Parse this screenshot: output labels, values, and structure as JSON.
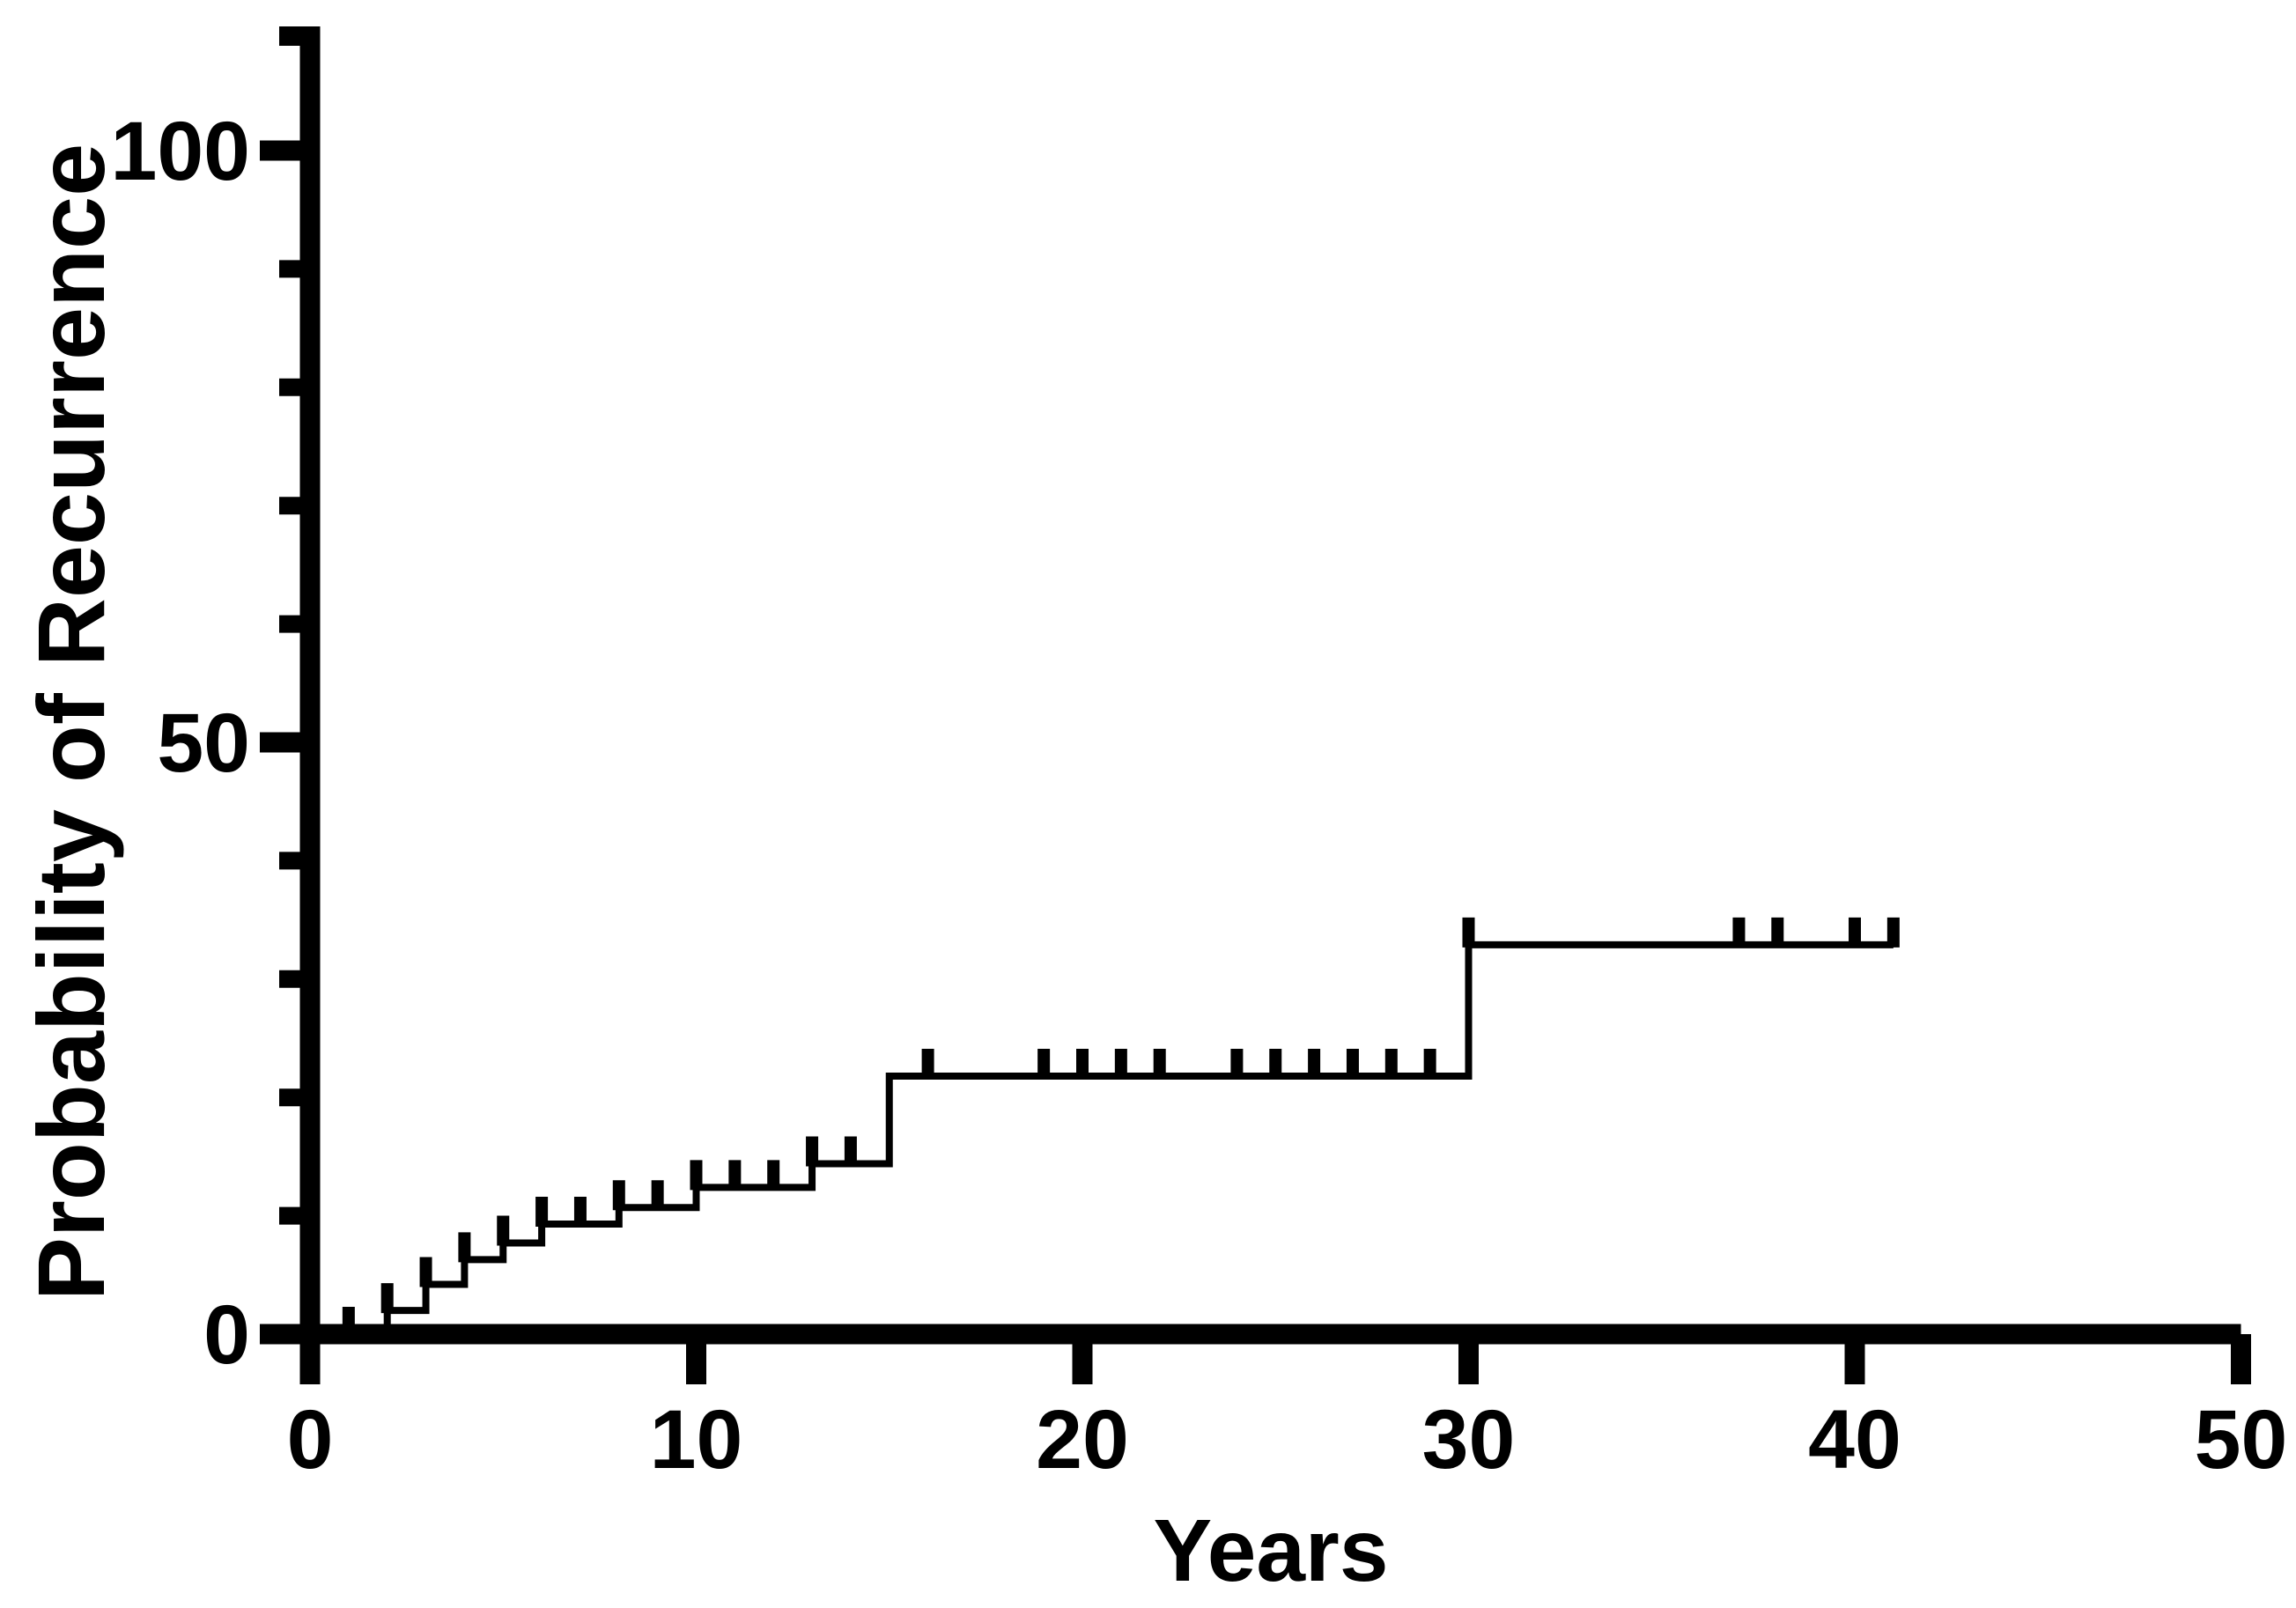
{
  "figure": {
    "background_color": "#ffffff",
    "ink_color": "#000000",
    "description": "Kaplan-Meier style step plot of probability of recurrence over years, black on white, no title, no legend"
  },
  "chart_data": {
    "type": "line",
    "subtype": "kaplan-meier-step",
    "title": "",
    "xlabel": "Years",
    "ylabel": "Probability of Recurrence",
    "grid": false,
    "legend": false,
    "line_color": "#000000",
    "x_axis": {
      "min": 0,
      "max": 50,
      "tick_interval": 10,
      "ticks": [
        {
          "value": 0,
          "label": "0"
        },
        {
          "value": 10,
          "label": "10"
        },
        {
          "value": 20,
          "label": "20"
        },
        {
          "value": 30,
          "label": "30"
        },
        {
          "value": 40,
          "label": "40"
        },
        {
          "value": 50,
          "label": "50"
        }
      ]
    },
    "y_axis": {
      "min": 0,
      "max": 110,
      "major_tick_interval": 50,
      "minor_tick_interval": 10,
      "end_cap_value": 110,
      "major_ticks": [
        {
          "value": 0,
          "label": "0"
        },
        {
          "value": 50,
          "label": "50"
        },
        {
          "value": 100,
          "label": "100"
        }
      ],
      "minor_ticks": [
        10,
        20,
        30,
        40,
        60,
        70,
        80,
        90
      ]
    },
    "series": [
      {
        "name": "Probability of Recurrence",
        "draw_style": "step-post",
        "start_point": {
          "t": 0,
          "v": 0
        },
        "step_points": [
          {
            "t": 2,
            "v": 2.0
          },
          {
            "t": 3,
            "v": 4.2
          },
          {
            "t": 4,
            "v": 6.3
          },
          {
            "t": 5,
            "v": 7.7
          },
          {
            "t": 6,
            "v": 9.3
          },
          {
            "t": 8,
            "v": 10.7
          },
          {
            "t": 10,
            "v": 12.4
          },
          {
            "t": 13,
            "v": 14.4
          },
          {
            "t": 15,
            "v": 21.8
          },
          {
            "t": 30,
            "v": 32.9
          }
        ],
        "end_time": 41,
        "end_value": 32.9,
        "censor_marks": [
          {
            "t": 1,
            "v": 0
          },
          {
            "t": 2,
            "v": 2.0
          },
          {
            "t": 3,
            "v": 4.2
          },
          {
            "t": 4,
            "v": 6.3
          },
          {
            "t": 5,
            "v": 7.7
          },
          {
            "t": 6,
            "v": 9.3
          },
          {
            "t": 7,
            "v": 9.3
          },
          {
            "t": 8,
            "v": 10.7
          },
          {
            "t": 9,
            "v": 10.7
          },
          {
            "t": 10,
            "v": 12.4
          },
          {
            "t": 11,
            "v": 12.4
          },
          {
            "t": 12,
            "v": 12.4
          },
          {
            "t": 13,
            "v": 14.4
          },
          {
            "t": 14,
            "v": 14.4
          },
          {
            "t": 16,
            "v": 21.8
          },
          {
            "t": 19,
            "v": 21.8
          },
          {
            "t": 20,
            "v": 21.8
          },
          {
            "t": 21,
            "v": 21.8
          },
          {
            "t": 22,
            "v": 21.8
          },
          {
            "t": 24,
            "v": 21.8
          },
          {
            "t": 25,
            "v": 21.8
          },
          {
            "t": 26,
            "v": 21.8
          },
          {
            "t": 27,
            "v": 21.8
          },
          {
            "t": 28,
            "v": 21.8
          },
          {
            "t": 29,
            "v": 21.8
          },
          {
            "t": 30,
            "v": 32.9
          },
          {
            "t": 37,
            "v": 32.9
          },
          {
            "t": 38,
            "v": 32.9
          },
          {
            "t": 40,
            "v": 32.9
          },
          {
            "t": 41,
            "v": 32.9
          }
        ]
      }
    ]
  }
}
